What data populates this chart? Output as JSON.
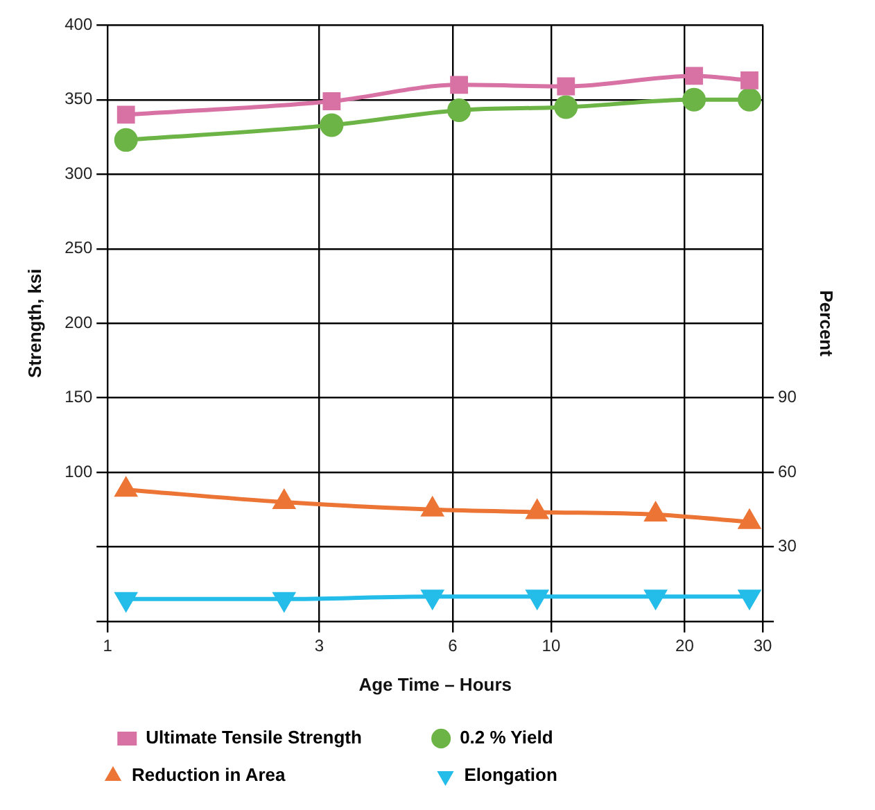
{
  "chart_data": {
    "type": "line",
    "xlabel": "Age Time – Hours",
    "ylabel": "Strength, ksi",
    "y2label": "Percent",
    "log": "x",
    "xlim": [
      1,
      30
    ],
    "xticks": [
      1,
      3,
      6,
      10,
      20,
      30
    ],
    "ylim": [
      0,
      400
    ],
    "yticks": [
      {
        "value": 0,
        "label": null
      },
      {
        "value": 50,
        "label": null
      },
      100,
      150,
      200,
      250,
      300,
      350,
      400
    ],
    "y2lim": [
      0,
      240
    ],
    "y2ticks": [
      {
        "value": 0,
        "label": null
      },
      30,
      60,
      90
    ],
    "grid": true,
    "legend": "bottom",
    "series": [
      {
        "name": "Ultimate Tensile Strength",
        "color": "#d872a4",
        "marker": "square",
        "x": [
          1.1,
          3.2,
          6.2,
          10.8,
          21,
          28
        ],
        "values": [
          340,
          349,
          360,
          359,
          366,
          363
        ]
      },
      {
        "name": "0.2 % Yield",
        "color": "#6db446",
        "marker": "circle",
        "x": [
          1.1,
          3.2,
          6.2,
          10.8,
          21,
          28
        ],
        "values": [
          323,
          333,
          343,
          345,
          350,
          350
        ]
      },
      {
        "name": "Reduction in Area",
        "color": "#ec7434",
        "marker": "triangle",
        "axis": "y2",
        "x": [
          1.1,
          2.5,
          5.4,
          9.3,
          17.2,
          28
        ],
        "values": [
          53,
          48,
          45,
          44,
          43,
          40
        ]
      },
      {
        "name": "Elongation",
        "color": "#24bce8",
        "marker": "triangle-down",
        "axis": "y2",
        "x": [
          1.1,
          2.5,
          5.4,
          9.3,
          17.2,
          28
        ],
        "values": [
          9,
          9,
          10,
          10,
          10,
          10
        ]
      }
    ]
  }
}
